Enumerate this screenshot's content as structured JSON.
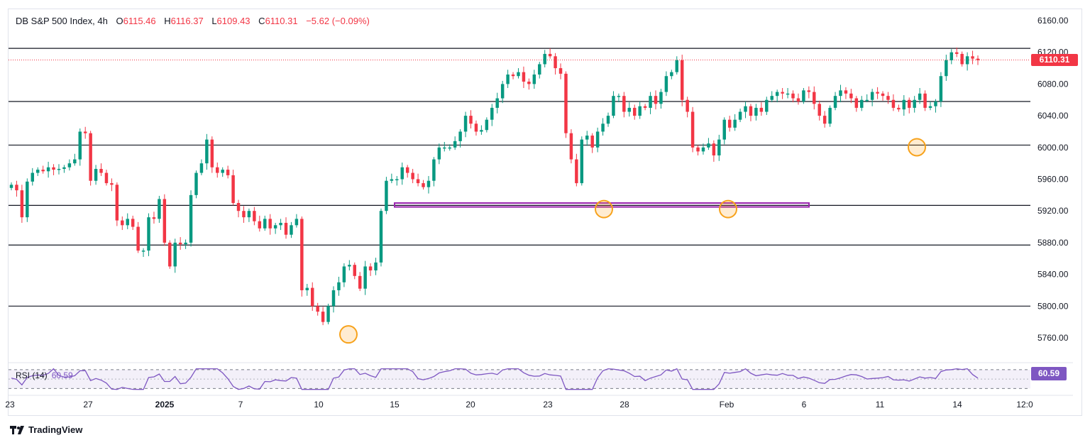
{
  "legend": {
    "symbol": "DB S&P 500 Index, 4h",
    "o_label": "O",
    "o": "6115.46",
    "h_label": "H",
    "h": "6116.37",
    "l_label": "L",
    "l": "6109.43",
    "c_label": "C",
    "c": "6110.31",
    "change": "−5.62 (−0.09%)"
  },
  "price_badge": "6110.31",
  "rsi": {
    "label": "RSI (14)",
    "value": "60.59",
    "badge": "60.59"
  },
  "footer": {
    "brand": "TradingView"
  },
  "colors": {
    "up": "#089981",
    "down": "#f23645",
    "rsi": "#7e57c2",
    "highlight": "#f7a21b",
    "zone": "#9c27b0"
  },
  "chart_data": {
    "type": "candlestick",
    "title": "DB S&P 500 Index, 4h",
    "y_ticks": [
      "6160.00",
      "6120.00",
      "6080.00",
      "6040.00",
      "6000.00",
      "5960.00",
      "5920.00",
      "5880.00",
      "5840.00",
      "5800.00",
      "5760.00"
    ],
    "ylim": [
      5730,
      6170
    ],
    "x_ticks": [
      "23",
      "27",
      "2025",
      "7",
      "10",
      "15",
      "20",
      "23",
      "28",
      "Feb",
      "6",
      "11",
      "14",
      "12:0"
    ],
    "horizontal_levels": [
      6125,
      6058,
      6003,
      5927,
      5877,
      5800
    ],
    "support_zone": [
      5925,
      5930
    ],
    "highlighted_lows": [
      5767,
      5925,
      5925,
      6003
    ],
    "last_price": 6110.31,
    "rsi_value": 60.59,
    "rsi_bands": [
      70,
      30
    ],
    "closes": [
      5953,
      5946,
      5912,
      5957,
      5968,
      5972,
      5970,
      5975,
      5972,
      5973,
      5975,
      5980,
      5985,
      6020,
      6018,
      5958,
      5973,
      5968,
      5955,
      5953,
      5908,
      5902,
      5910,
      5900,
      5870,
      5870,
      5912,
      5910,
      5935,
      5880,
      5850,
      5880,
      5878,
      5880,
      5940,
      5968,
      5980,
      6010,
      5975,
      5968,
      5972,
      5965,
      5930,
      5920,
      5912,
      5920,
      5907,
      5898,
      5910,
      5898,
      5902,
      5905,
      5890,
      5902,
      5910,
      5820,
      5823,
      5800,
      5793,
      5780,
      5800,
      5820,
      5830,
      5850,
      5852,
      5838,
      5822,
      5850,
      5845,
      5855,
      5920,
      5958,
      5960,
      5960,
      5975,
      5968,
      5960,
      5955,
      5950,
      5958,
      5985,
      6000,
      6000,
      6000,
      6008,
      6020,
      6040,
      6030,
      6020,
      6022,
      6035,
      6050,
      6062,
      6080,
      6092,
      6090,
      6095,
      6083,
      6080,
      6092,
      6105,
      6118,
      6115,
      6100,
      6093,
      6018,
      5985,
      5955,
      6010,
      6015,
      6000,
      6020,
      6030,
      6040,
      6065,
      6065,
      6045,
      6050,
      6040,
      6052,
      6050,
      6065,
      6055,
      6070,
      6090,
      6095,
      6110,
      6060,
      6045,
      6000,
      5995,
      6000,
      6005,
      5990,
      6010,
      6035,
      6025,
      6035,
      6045,
      6052,
      6040,
      6050,
      6045,
      6060,
      6065,
      6070,
      6068,
      6068,
      6062,
      6058,
      6072,
      6070,
      6055,
      6040,
      6030,
      6050,
      6065,
      6072,
      6068,
      6062,
      6050,
      6060,
      6060,
      6070,
      6068,
      6065,
      6060,
      6050,
      6048,
      6060,
      6050,
      6060,
      6068,
      6050,
      6052,
      6058,
      6090,
      6110,
      6120,
      6118,
      6105,
      6115,
      6112,
      6110
    ]
  }
}
